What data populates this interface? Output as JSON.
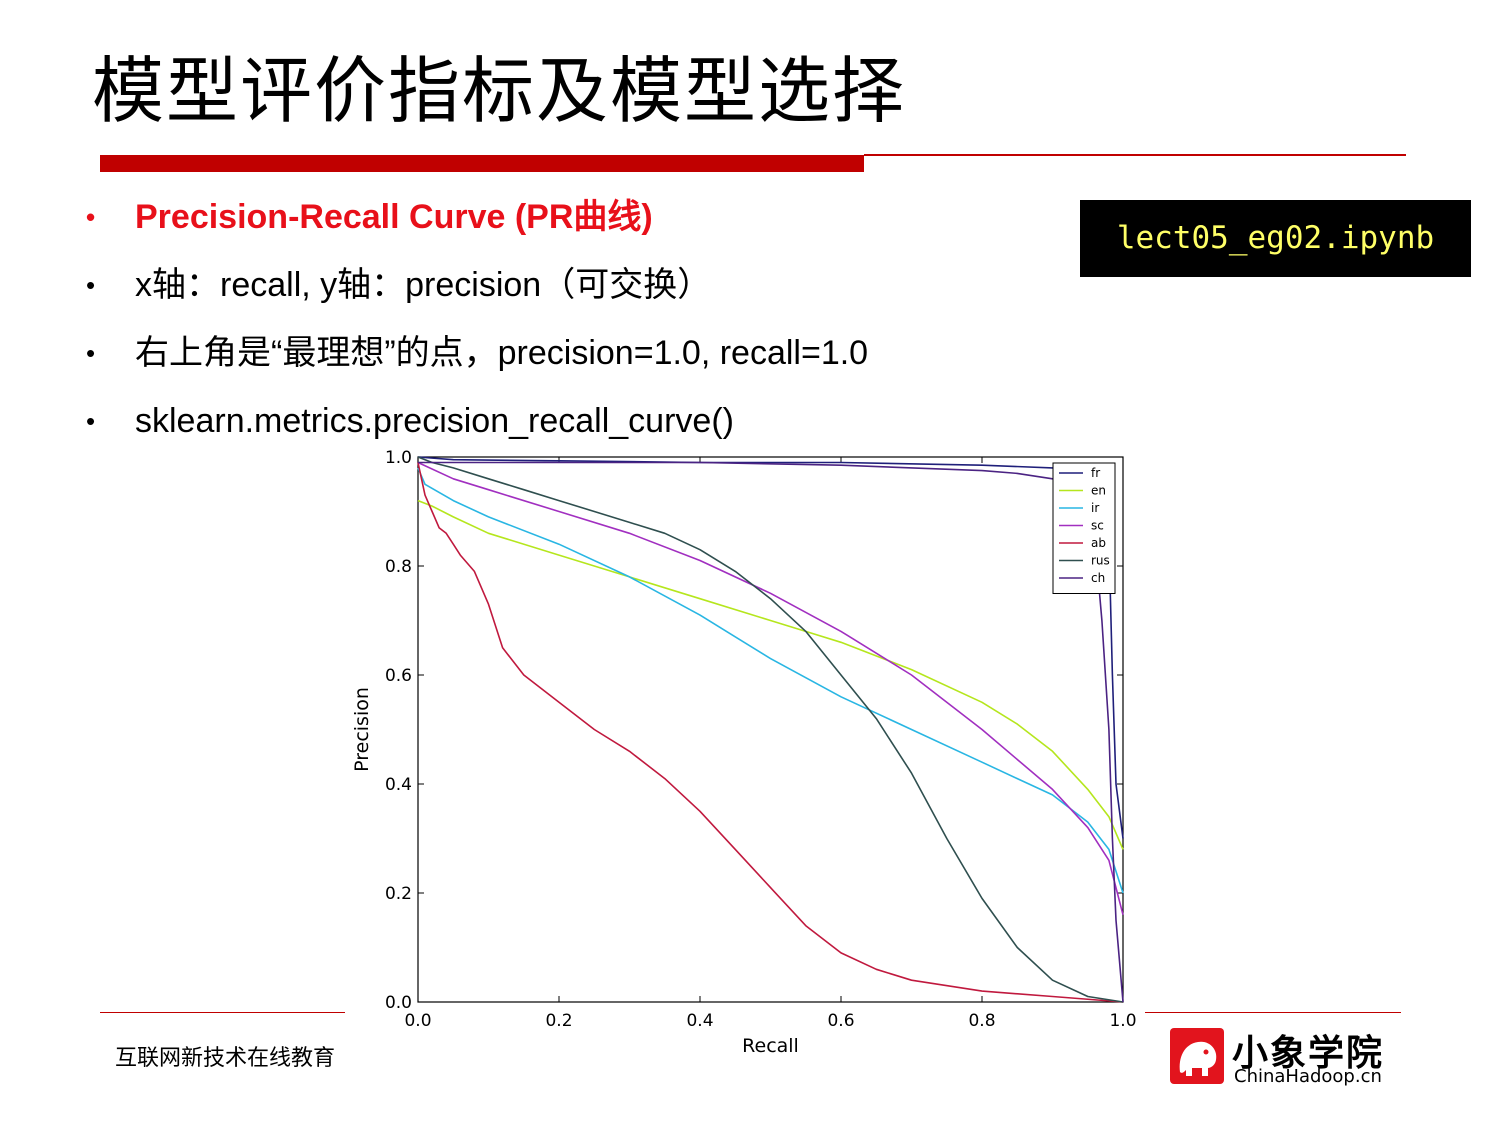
{
  "slide": {
    "title": "模型评价指标及模型选择",
    "file_badge": "lect05_eg02.ipynb",
    "footer_text": "互联网新技术在线教育",
    "logo": {
      "cn": "小象学院",
      "en": "ChinaHadoop.cn"
    },
    "accent_color": "#c00000",
    "bullet_marker": "•",
    "bullets": [
      {
        "text": "Precision-Recall Curve (PR曲线)",
        "highlight": true
      },
      {
        "text": "x轴：recall, y轴：precision（可交换）",
        "highlight": false
      },
      {
        "text": "右上角是“最理想”的点，precision=1.0, recall=1.0",
        "highlight": false
      },
      {
        "text": "sklearn.metrics.precision_recall_curve()",
        "highlight": false
      }
    ]
  },
  "chart_data": {
    "type": "line",
    "xlabel": "Recall",
    "ylabel": "Precision",
    "xlim": [
      0,
      1
    ],
    "ylim": [
      0,
      1
    ],
    "xticks": [
      "0.0",
      "0.2",
      "0.4",
      "0.6",
      "0.8",
      "1.0"
    ],
    "yticks": [
      "0.0",
      "0.2",
      "0.4",
      "0.6",
      "0.8",
      "1.0"
    ],
    "legend_position": "top-right",
    "grid": false,
    "series": [
      {
        "name": "fr",
        "color": "#1f1f7a",
        "points": [
          [
            0,
            1.0
          ],
          [
            0.05,
            0.995
          ],
          [
            0.2,
            0.993
          ],
          [
            0.4,
            0.99
          ],
          [
            0.6,
            0.99
          ],
          [
            0.8,
            0.985
          ],
          [
            0.9,
            0.98
          ],
          [
            0.95,
            0.97
          ],
          [
            0.97,
            0.95
          ],
          [
            0.98,
            0.85
          ],
          [
            0.985,
            0.6
          ],
          [
            0.99,
            0.4
          ],
          [
            1.0,
            0.3
          ]
        ]
      },
      {
        "name": "en",
        "color": "#b5e61d",
        "points": [
          [
            0,
            0.92
          ],
          [
            0.02,
            0.91
          ],
          [
            0.05,
            0.89
          ],
          [
            0.1,
            0.86
          ],
          [
            0.2,
            0.82
          ],
          [
            0.3,
            0.78
          ],
          [
            0.4,
            0.74
          ],
          [
            0.5,
            0.7
          ],
          [
            0.6,
            0.66
          ],
          [
            0.7,
            0.61
          ],
          [
            0.8,
            0.55
          ],
          [
            0.85,
            0.51
          ],
          [
            0.9,
            0.46
          ],
          [
            0.95,
            0.39
          ],
          [
            0.98,
            0.34
          ],
          [
            1.0,
            0.28
          ]
        ]
      },
      {
        "name": "ir",
        "color": "#29b6e3",
        "points": [
          [
            0,
            0.98
          ],
          [
            0.01,
            0.95
          ],
          [
            0.05,
            0.92
          ],
          [
            0.1,
            0.89
          ],
          [
            0.2,
            0.84
          ],
          [
            0.3,
            0.78
          ],
          [
            0.4,
            0.71
          ],
          [
            0.5,
            0.63
          ],
          [
            0.6,
            0.56
          ],
          [
            0.7,
            0.5
          ],
          [
            0.8,
            0.44
          ],
          [
            0.85,
            0.41
          ],
          [
            0.9,
            0.38
          ],
          [
            0.95,
            0.33
          ],
          [
            0.98,
            0.28
          ],
          [
            1.0,
            0.2
          ]
        ]
      },
      {
        "name": "sc",
        "color": "#a12fc0",
        "points": [
          [
            0,
            0.99
          ],
          [
            0.05,
            0.96
          ],
          [
            0.1,
            0.94
          ],
          [
            0.2,
            0.9
          ],
          [
            0.3,
            0.86
          ],
          [
            0.4,
            0.81
          ],
          [
            0.5,
            0.75
          ],
          [
            0.6,
            0.68
          ],
          [
            0.7,
            0.6
          ],
          [
            0.8,
            0.5
          ],
          [
            0.9,
            0.39
          ],
          [
            0.95,
            0.32
          ],
          [
            0.98,
            0.26
          ],
          [
            1.0,
            0.16
          ]
        ]
      },
      {
        "name": "ab",
        "color": "#c0193e",
        "points": [
          [
            0,
            0.99
          ],
          [
            0.005,
            0.96
          ],
          [
            0.01,
            0.93
          ],
          [
            0.02,
            0.9
          ],
          [
            0.03,
            0.87
          ],
          [
            0.04,
            0.86
          ],
          [
            0.05,
            0.84
          ],
          [
            0.06,
            0.82
          ],
          [
            0.08,
            0.79
          ],
          [
            0.1,
            0.73
          ],
          [
            0.12,
            0.65
          ],
          [
            0.15,
            0.6
          ],
          [
            0.2,
            0.55
          ],
          [
            0.25,
            0.5
          ],
          [
            0.3,
            0.46
          ],
          [
            0.35,
            0.41
          ],
          [
            0.4,
            0.35
          ],
          [
            0.45,
            0.28
          ],
          [
            0.5,
            0.21
          ],
          [
            0.55,
            0.14
          ],
          [
            0.6,
            0.09
          ],
          [
            0.65,
            0.06
          ],
          [
            0.7,
            0.04
          ],
          [
            0.8,
            0.02
          ],
          [
            0.9,
            0.01
          ],
          [
            1.0,
            0.0
          ]
        ]
      },
      {
        "name": "rus",
        "color": "#2f4f4f",
        "points": [
          [
            0,
            1.0
          ],
          [
            0.02,
            0.99
          ],
          [
            0.05,
            0.98
          ],
          [
            0.1,
            0.96
          ],
          [
            0.15,
            0.94
          ],
          [
            0.2,
            0.92
          ],
          [
            0.25,
            0.9
          ],
          [
            0.3,
            0.88
          ],
          [
            0.35,
            0.86
          ],
          [
            0.4,
            0.83
          ],
          [
            0.45,
            0.79
          ],
          [
            0.5,
            0.74
          ],
          [
            0.55,
            0.68
          ],
          [
            0.6,
            0.6
          ],
          [
            0.65,
            0.52
          ],
          [
            0.7,
            0.42
          ],
          [
            0.75,
            0.3
          ],
          [
            0.8,
            0.19
          ],
          [
            0.85,
            0.1
          ],
          [
            0.9,
            0.04
          ],
          [
            0.95,
            0.01
          ],
          [
            1.0,
            0.0
          ]
        ]
      },
      {
        "name": "ch",
        "color": "#4b2383",
        "points": [
          [
            0,
            0.99
          ],
          [
            0.1,
            0.99
          ],
          [
            0.2,
            0.99
          ],
          [
            0.4,
            0.99
          ],
          [
            0.6,
            0.985
          ],
          [
            0.8,
            0.975
          ],
          [
            0.85,
            0.97
          ],
          [
            0.9,
            0.96
          ],
          [
            0.93,
            0.94
          ],
          [
            0.95,
            0.9
          ],
          [
            0.96,
            0.85
          ],
          [
            0.97,
            0.7
          ],
          [
            0.98,
            0.5
          ],
          [
            0.985,
            0.3
          ],
          [
            0.99,
            0.15
          ],
          [
            1.0,
            0.0
          ]
        ]
      }
    ]
  }
}
